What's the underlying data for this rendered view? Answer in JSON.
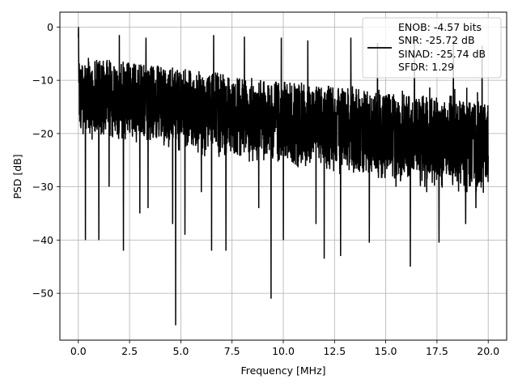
{
  "chart_data": {
    "type": "line",
    "title": "",
    "xlabel": "Frequency [MHz]",
    "ylabel": "PSD [dB]",
    "xlim": [
      -0.9,
      20.9
    ],
    "ylim": [
      -58.8,
      2.8
    ],
    "grid": true,
    "x_ticks": [
      0.0,
      2.5,
      5.0,
      7.5,
      10.0,
      12.5,
      15.0,
      17.5,
      20.0
    ],
    "x_tick_labels": [
      "0.0",
      "2.5",
      "5.0",
      "7.5",
      "10.0",
      "12.5",
      "15.0",
      "17.5",
      "20.0"
    ],
    "y_ticks": [
      0,
      -10,
      -20,
      -30,
      -40,
      -50
    ],
    "y_tick_labels": [
      "0",
      "−10",
      "−20",
      "−30",
      "−40",
      "−50"
    ],
    "legend": {
      "placement": "top-right",
      "entries": [
        "ENOB: -4.57 bits",
        "SNR: -25.72 dB",
        "SINAD: -25.74 dB",
        "SFDR: 1.29"
      ]
    },
    "series": [
      {
        "color": "#000000",
        "x_range": [
          0,
          20
        ],
        "noise_floor": {
          "upper": [
            -4,
            -13
          ],
          "lower": [
            -18,
            -29
          ],
          "mean": -15
        },
        "peaks": [
          {
            "x": 0.0,
            "y": 0.0
          },
          {
            "x": 4.75,
            "y": -56.0
          },
          {
            "x": 9.4,
            "y": -51.0
          },
          {
            "x": 16.2,
            "y": -45.0
          },
          {
            "x": 12.0,
            "y": -43.5
          },
          {
            "x": 12.8,
            "y": -43.0
          },
          {
            "x": 2.2,
            "y": -42.0
          },
          {
            "x": 6.5,
            "y": -42.0
          },
          {
            "x": 7.2,
            "y": -42.0
          },
          {
            "x": 14.2,
            "y": -40.5
          },
          {
            "x": 17.6,
            "y": -40.5
          },
          {
            "x": 0.35,
            "y": -40.0
          },
          {
            "x": 1.0,
            "y": -40.0
          },
          {
            "x": 10.0,
            "y": -40.0
          },
          {
            "x": 4.6,
            "y": -37.0
          },
          {
            "x": 5.2,
            "y": -39.0
          },
          {
            "x": 11.6,
            "y": -37.0
          },
          {
            "x": 18.9,
            "y": -37.0
          },
          {
            "x": 3.0,
            "y": -35.0
          },
          {
            "x": 13.3,
            "y": -35.0
          },
          {
            "x": 3.4,
            "y": -34.0
          },
          {
            "x": 8.8,
            "y": -34.0
          },
          {
            "x": 19.4,
            "y": -34.0
          },
          {
            "x": 1.5,
            "y": -30.0
          },
          {
            "x": 6.0,
            "y": -31.0
          },
          {
            "x": 15.5,
            "y": -30.0
          },
          {
            "x": 17.0,
            "y": -31.0
          },
          {
            "x": 2.0,
            "y": -1.5
          },
          {
            "x": 3.3,
            "y": -2.0
          },
          {
            "x": 6.6,
            "y": -1.5
          },
          {
            "x": 8.1,
            "y": -1.8
          },
          {
            "x": 9.9,
            "y": -2.0
          },
          {
            "x": 11.2,
            "y": -2.5
          },
          {
            "x": 13.3,
            "y": -2.0
          },
          {
            "x": 14.6,
            "y": -3.0
          },
          {
            "x": 16.4,
            "y": -2.0
          },
          {
            "x": 18.3,
            "y": -2.5
          },
          {
            "x": 19.7,
            "y": -3.5
          }
        ]
      }
    ]
  }
}
